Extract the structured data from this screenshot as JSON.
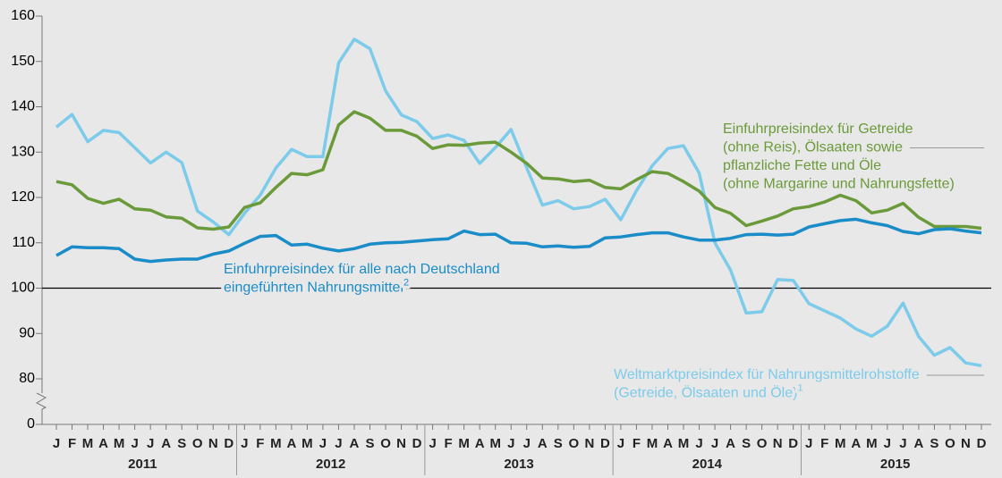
{
  "chart_data": {
    "type": "line",
    "categories": [
      "J",
      "F",
      "M",
      "A",
      "M",
      "J",
      "J",
      "A",
      "S",
      "O",
      "N",
      "D",
      "J",
      "F",
      "M",
      "A",
      "M",
      "J",
      "J",
      "A",
      "S",
      "O",
      "N",
      "D",
      "J",
      "F",
      "M",
      "A",
      "M",
      "J",
      "J",
      "A",
      "S",
      "O",
      "N",
      "D",
      "J",
      "F",
      "M",
      "A",
      "M",
      "J",
      "J",
      "A",
      "S",
      "O",
      "N",
      "D",
      "J",
      "F",
      "M",
      "A",
      "M",
      "J",
      "J",
      "A",
      "S",
      "O",
      "N",
      "D"
    ],
    "years": [
      "2011",
      "2012",
      "2013",
      "2014",
      "2015"
    ],
    "ylim": [
      0,
      160
    ],
    "yticks": [
      0,
      80,
      90,
      100,
      110,
      120,
      130,
      140,
      150,
      160
    ],
    "axis_break": [
      0,
      80
    ],
    "reference_line": 100,
    "series": [
      {
        "name": [
          "Weltmarktpreisindex für Nahrungsmittelrohstoffe",
          "(Getreide, Ölsaaten und Öle)"
        ],
        "footnote": "1",
        "color": "#7ccbea",
        "values": [
          135.5,
          138.3,
          132.3,
          134.8,
          134.3,
          131,
          127.6,
          130,
          127.7,
          117,
          114.6,
          111.8,
          116.5,
          120.5,
          126.5,
          130.6,
          129,
          129,
          149.7,
          154.9,
          152.8,
          143.5,
          138.2,
          136.7,
          133,
          133.8,
          132.6,
          127.5,
          131,
          135,
          126.5,
          118.3,
          119.3,
          117.5,
          118,
          119.6,
          115.1,
          121.5,
          127,
          130.8,
          131.4,
          125.4,
          110,
          104,
          94.5,
          94.8,
          101.9,
          101.7,
          96.6,
          95,
          93.4,
          91,
          89.4,
          91.6,
          96.7,
          89.3,
          85.2,
          86.9,
          83.5,
          82.9
        ]
      },
      {
        "name": [
          "Einfuhrpreisindex für Getreide",
          "(ohne Reis), Ölsaaten sowie",
          "pflanzliche Fette und Öle",
          "(ohne Margarine und Nahrungsfette)"
        ],
        "color": "#6b9a3a",
        "values": [
          123.5,
          122.8,
          119.8,
          118.7,
          119.6,
          117.5,
          117.2,
          115.7,
          115.4,
          113.3,
          113,
          113.5,
          117.8,
          118.8,
          122.2,
          125.3,
          125,
          126.1,
          136,
          138.9,
          137.5,
          134.8,
          134.8,
          133.5,
          130.8,
          131.6,
          131.5,
          132,
          132.2,
          130,
          127.5,
          124.3,
          124.1,
          123.5,
          123.8,
          122.2,
          121.9,
          123.9,
          125.7,
          125.3,
          123.5,
          121.4,
          117.8,
          116.5,
          113.8,
          114.8,
          115.9,
          117.5,
          118,
          119,
          120.5,
          119.3,
          116.6,
          117.2,
          118.7,
          115.6,
          113.6,
          113.6,
          113.6,
          113.2
        ]
      },
      {
        "name": [
          "Einfuhrpreisindex für alle nach Deutschland",
          "eingeführten Nahrungsmittel"
        ],
        "footnote": "2",
        "color": "#1a8cc8",
        "values": [
          107.2,
          109.1,
          108.9,
          108.9,
          108.7,
          106.4,
          105.9,
          106.2,
          106.4,
          106.4,
          107.5,
          108.2,
          109.9,
          111.4,
          111.6,
          109.5,
          109.7,
          108.8,
          108.2,
          108.7,
          109.7,
          110,
          110.1,
          110.4,
          110.7,
          110.9,
          112.6,
          111.8,
          111.9,
          110,
          109.9,
          109.1,
          109.3,
          109,
          109.2,
          111.1,
          111.3,
          111.8,
          112.2,
          112.2,
          111.3,
          110.6,
          110.6,
          111,
          111.8,
          111.9,
          111.7,
          111.9,
          113.5,
          114.2,
          114.9,
          115.2,
          114.4,
          113.8,
          112.5,
          112,
          112.9,
          113.1,
          112.6,
          112.2
        ]
      }
    ]
  }
}
